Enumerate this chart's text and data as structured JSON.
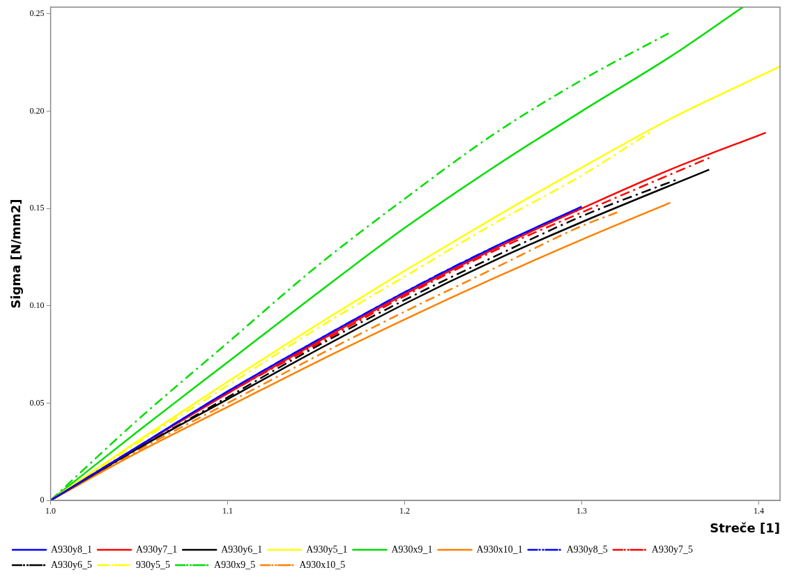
{
  "chart_data": {
    "type": "line",
    "xlabel": "Streče [1]",
    "ylabel": "Sigma [N/mm2]",
    "xlim": [
      1.0,
      1.412
    ],
    "ylim": [
      0,
      0.2535
    ],
    "xticks": [
      {
        "value": 1.0,
        "label": "1.0"
      },
      {
        "value": 1.1,
        "label": "1.1"
      },
      {
        "value": 1.2,
        "label": "1.2"
      },
      {
        "value": 1.3,
        "label": "1.3"
      },
      {
        "value": 1.4,
        "label": "1.4"
      }
    ],
    "yticks": [
      0,
      {
        "value": 0.05,
        "label": "0.05"
      },
      {
        "value": 0.1,
        "label": "0.10"
      },
      {
        "value": 0.15,
        "label": "0.15"
      },
      {
        "value": 0.2,
        "label": "0.20"
      },
      {
        "value": 0.25,
        "label": "0.25"
      }
    ],
    "grid": false,
    "legend": "bottom",
    "marker": "none",
    "series": [
      {
        "name": "A930y8_1",
        "color": "#0000ff",
        "line_style": "solid",
        "x": [
          1.0,
          1.05,
          1.1,
          1.15,
          1.2,
          1.25,
          1.3
        ],
        "values": [
          0,
          0.028,
          0.056,
          0.082,
          0.107,
          0.13,
          0.151
        ]
      },
      {
        "name": "A930y7_1",
        "color": "#ff0000",
        "line_style": "solid",
        "x": [
          1.0,
          1.05,
          1.1,
          1.15,
          1.2,
          1.25,
          1.3,
          1.35,
          1.404
        ],
        "values": [
          0,
          0.028,
          0.055,
          0.081,
          0.106,
          0.129,
          0.15,
          0.17,
          0.189
        ]
      },
      {
        "name": "A930y6_1",
        "color": "#000000",
        "line_style": "solid",
        "x": [
          1.0,
          1.05,
          1.1,
          1.15,
          1.2,
          1.25,
          1.3,
          1.372
        ],
        "values": [
          0,
          0.027,
          0.052,
          0.077,
          0.101,
          0.123,
          0.143,
          0.17
        ]
      },
      {
        "name": "A930y5_1",
        "color": "#ffff00",
        "line_style": "solid",
        "x": [
          1.0,
          1.05,
          1.1,
          1.15,
          1.2,
          1.25,
          1.3,
          1.35,
          1.412
        ],
        "values": [
          0,
          0.031,
          0.061,
          0.09,
          0.118,
          0.145,
          0.171,
          0.196,
          0.223
        ]
      },
      {
        "name": "A930x9_1",
        "color": "#00dd00",
        "line_style": "solid",
        "x": [
          1.0,
          1.05,
          1.1,
          1.15,
          1.2,
          1.25,
          1.3,
          1.35,
          1.391
        ],
        "values": [
          0,
          0.036,
          0.071,
          0.106,
          0.14,
          0.171,
          0.2,
          0.228,
          0.2535
        ]
      },
      {
        "name": "A930x10_1",
        "color": "#ff8000",
        "line_style": "solid",
        "x": [
          1.0,
          1.05,
          1.1,
          1.15,
          1.2,
          1.25,
          1.3,
          1.35
        ],
        "values": [
          0,
          0.025,
          0.048,
          0.071,
          0.093,
          0.114,
          0.134,
          0.153
        ]
      },
      {
        "name": "A930y8_5",
        "color": "#0000ff",
        "line_style": "dashed",
        "x": [
          1.0,
          1.05,
          1.1,
          1.15,
          1.2,
          1.25,
          1.3
        ],
        "values": [
          0,
          0.028,
          0.056,
          0.082,
          0.107,
          0.13,
          0.15
        ]
      },
      {
        "name": "A930y7_5",
        "color": "#ff0000",
        "line_style": "dashed",
        "x": [
          1.0,
          1.05,
          1.1,
          1.15,
          1.2,
          1.25,
          1.3,
          1.372
        ],
        "values": [
          0,
          0.028,
          0.055,
          0.08,
          0.105,
          0.128,
          0.148,
          0.176
        ]
      },
      {
        "name": "A930y6_5",
        "color": "#000000",
        "line_style": "dashed",
        "x": [
          1.0,
          1.05,
          1.1,
          1.15,
          1.2,
          1.25,
          1.3,
          1.354
        ],
        "values": [
          0,
          0.027,
          0.053,
          0.079,
          0.103,
          0.125,
          0.146,
          0.165
        ]
      },
      {
        "name": "930y5_5",
        "color": "#ffff00",
        "line_style": "dashed",
        "x": [
          1.0,
          1.05,
          1.1,
          1.15,
          1.2,
          1.25,
          1.3,
          1.34
        ],
        "values": [
          0,
          0.03,
          0.059,
          0.088,
          0.115,
          0.142,
          0.167,
          0.19
        ]
      },
      {
        "name": "A930x9_5",
        "color": "#00dd00",
        "line_style": "dashed",
        "x": [
          1.0,
          1.05,
          1.1,
          1.15,
          1.2,
          1.25,
          1.3,
          1.349
        ],
        "values": [
          0,
          0.042,
          0.081,
          0.12,
          0.155,
          0.188,
          0.216,
          0.24
        ]
      },
      {
        "name": "A930x10_5",
        "color": "#ff8000",
        "line_style": "dashed",
        "x": [
          1.0,
          1.05,
          1.1,
          1.15,
          1.2,
          1.25,
          1.3,
          1.32
        ],
        "values": [
          0,
          0.026,
          0.05,
          0.074,
          0.097,
          0.119,
          0.141,
          0.148
        ]
      }
    ]
  }
}
